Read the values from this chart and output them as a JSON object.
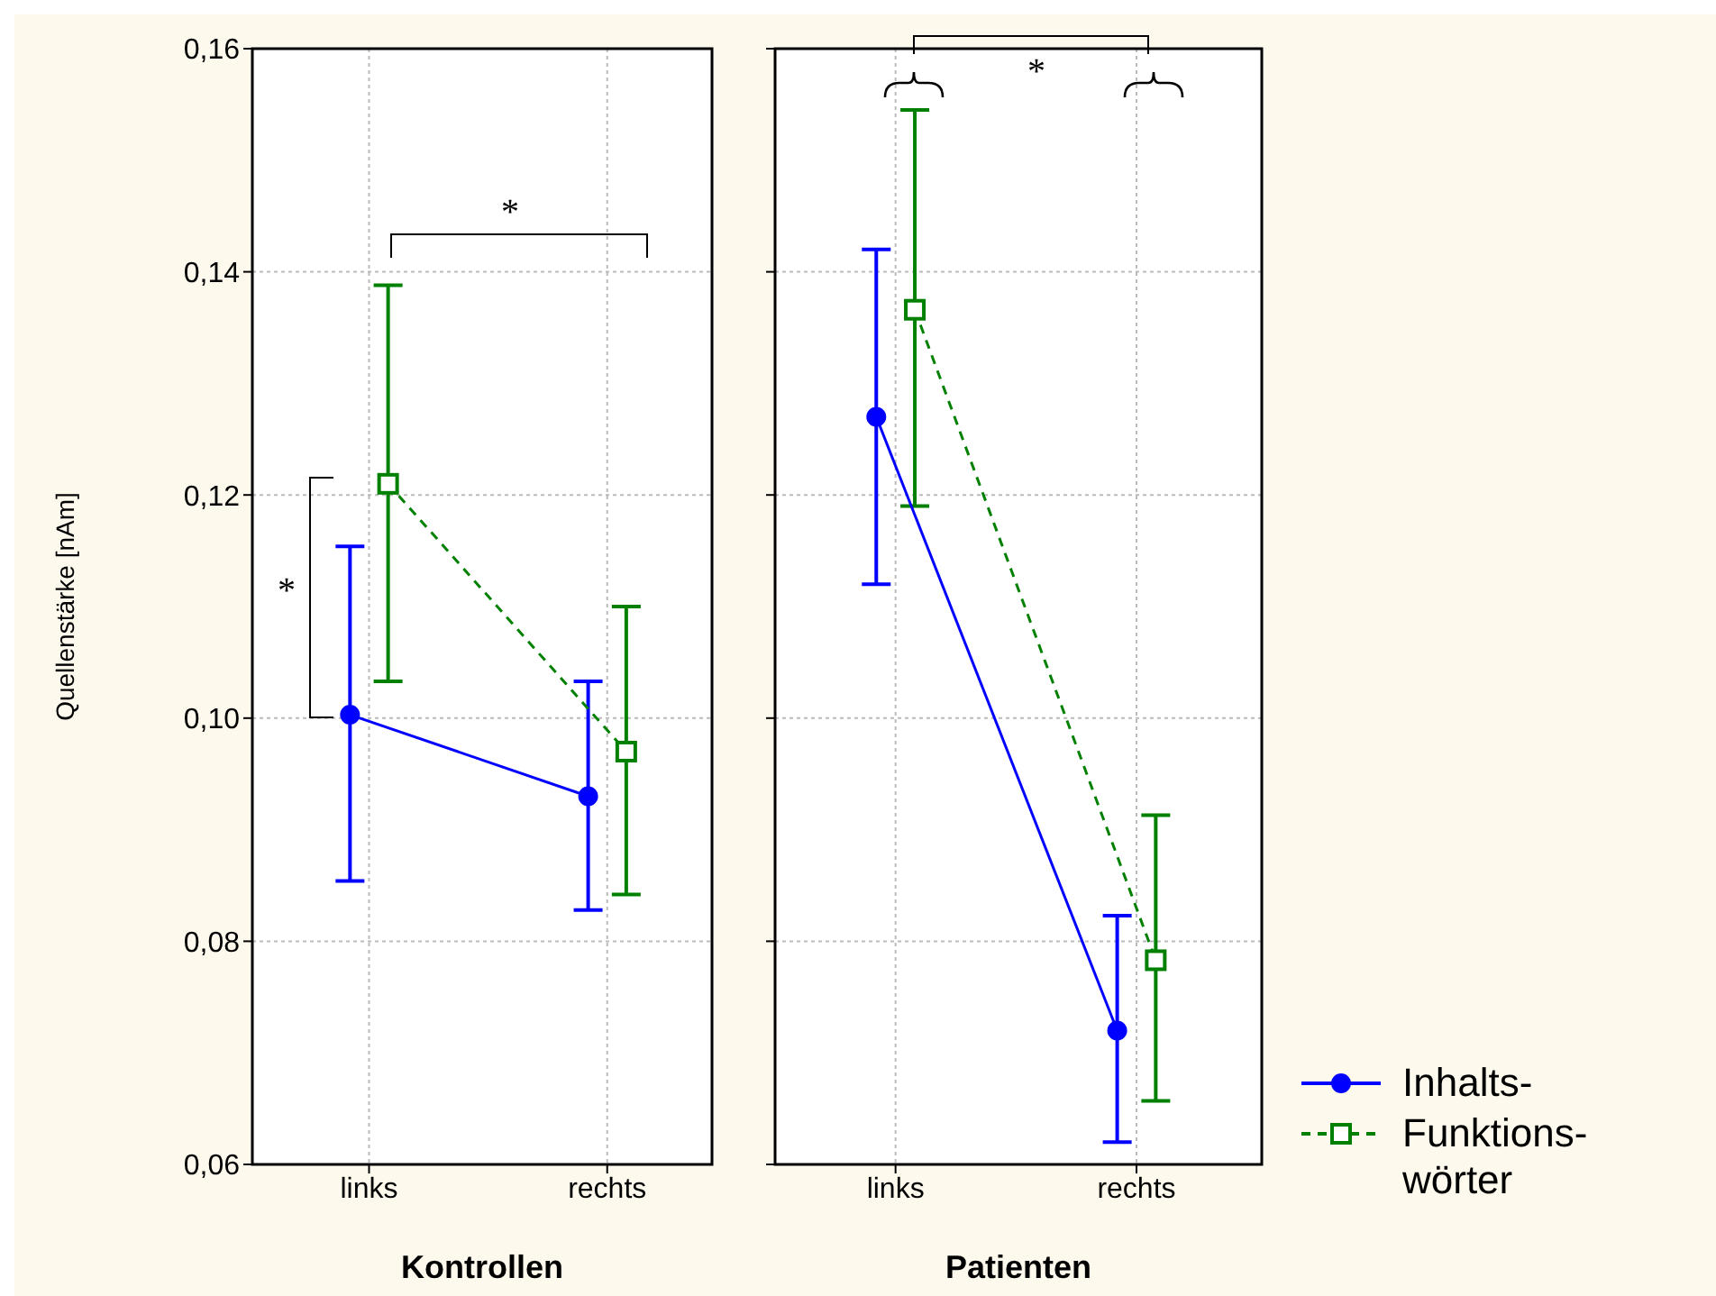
{
  "chart_data": [
    {
      "type": "line",
      "xlabel": "Kontrollen",
      "ylabel": "Quellenstärke [nAm]",
      "categories": [
        "links",
        "rechts"
      ],
      "series": [
        {
          "color": "#0000ff",
          "marker": "circle",
          "line_style": "solid",
          "values": [
            0.1003,
            0.093
          ],
          "errors": [
            [
              0.0854,
              0.1154
            ],
            [
              0.0828,
              0.1033
            ]
          ]
        },
        {
          "color": "#008000",
          "marker": "square",
          "line_style": "dashed",
          "values": [
            0.121,
            0.097
          ],
          "errors": [
            [
              0.1033,
              0.1388
            ],
            [
              0.0842,
              0.11
            ]
          ]
        }
      ],
      "ylim": [
        0.06,
        0.16
      ],
      "yticks": [
        {
          "value": 0.06,
          "label": "0,06"
        },
        {
          "value": 0.08,
          "label": "0,08"
        },
        {
          "value": 0.1,
          "label": "0,10"
        },
        {
          "value": 0.12,
          "label": "0,12"
        },
        {
          "value": 0.14,
          "label": "0,14"
        },
        {
          "value": 0.16,
          "label": "0,16"
        }
      ],
      "grid": true,
      "legend": false,
      "annotations": [
        "*",
        "*"
      ]
    },
    {
      "type": "line",
      "xlabel": "Patienten",
      "categories": [
        "links",
        "rechts"
      ],
      "series": [
        {
          "name": "Inhalts-",
          "color": "#0000ff",
          "marker": "circle",
          "line_style": "solid",
          "values": [
            0.127,
            0.072
          ],
          "errors": [
            [
              0.112,
              0.142
            ],
            [
              0.062,
              0.0823
            ]
          ]
        },
        {
          "name": "Funktions- wörter",
          "color": "#008000",
          "marker": "square",
          "line_style": "dashed",
          "values": [
            0.1366,
            0.0783
          ],
          "errors": [
            [
              0.119,
              0.1545
            ],
            [
              0.0657,
              0.0913
            ]
          ]
        }
      ],
      "ylim": [
        0.06,
        0.16
      ],
      "yticks": [
        {
          "value": 0.06,
          "label": null
        },
        {
          "value": 0.08,
          "label": null
        },
        {
          "value": 0.1,
          "label": null
        },
        {
          "value": 0.12,
          "label": null
        },
        {
          "value": 0.14,
          "label": null
        },
        {
          "value": 0.16,
          "label": null
        }
      ],
      "tick_labels": "x",
      "grid": true,
      "legend": "bottom right",
      "annotations": [
        "*"
      ]
    }
  ]
}
